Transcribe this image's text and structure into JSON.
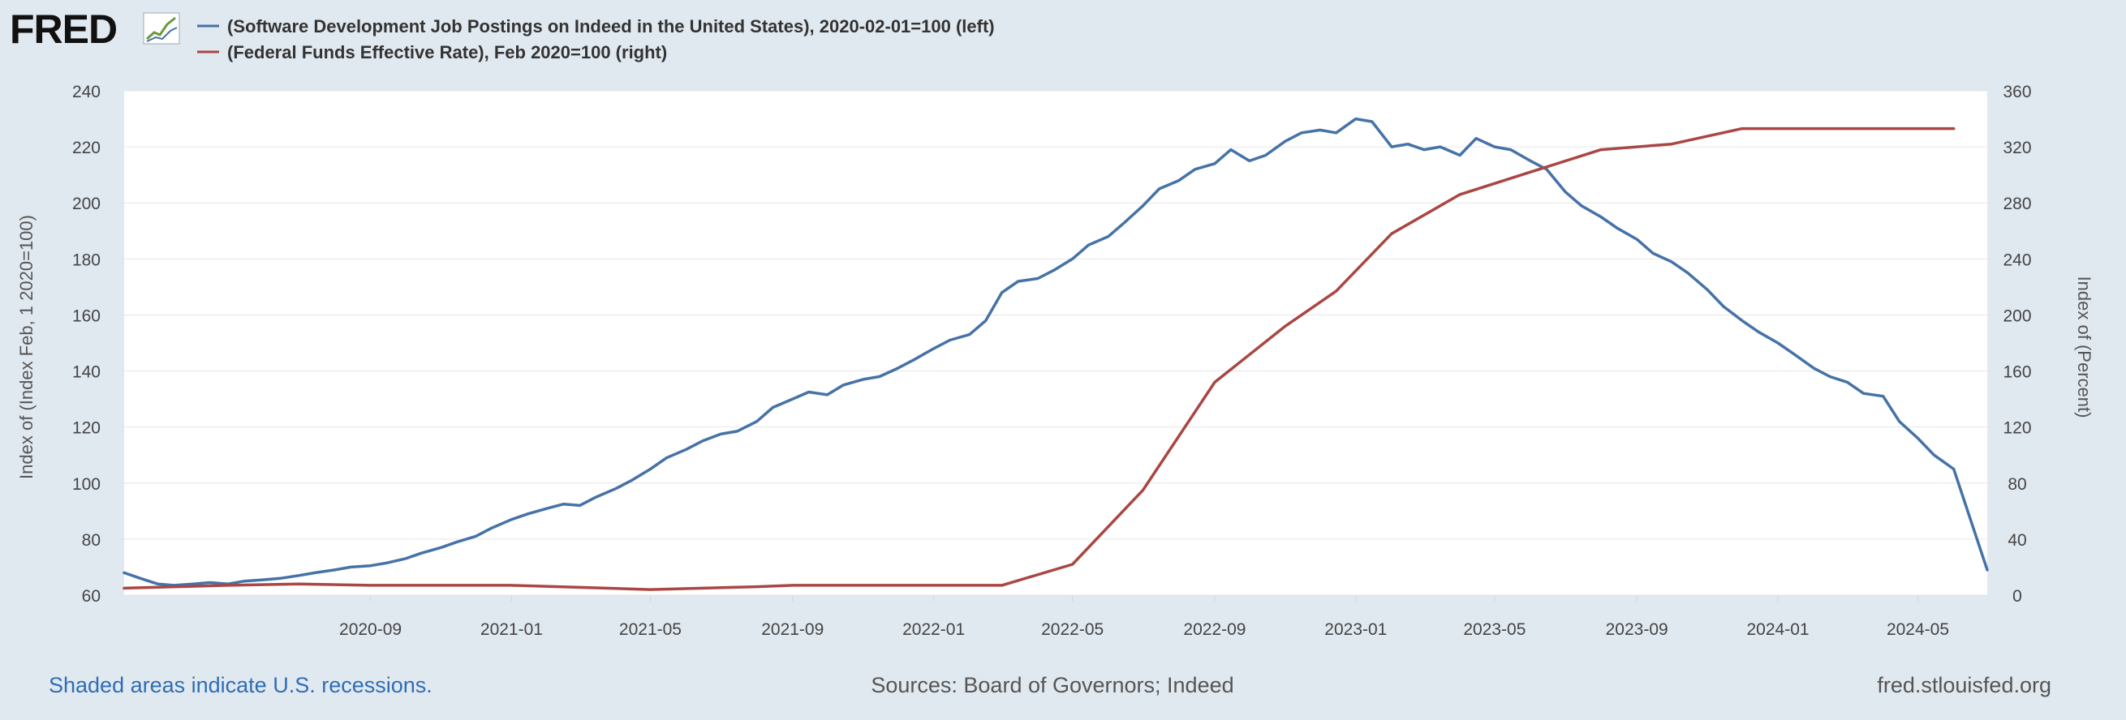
{
  "logo": {
    "text": "FRED"
  },
  "legend": [
    {
      "label": "(Software Development Job Postings on Indeed in the United States), 2020-02-01=100 (left)",
      "color": "#4572a7"
    },
    {
      "label": "(Federal Funds Effective Rate), Feb 2020=100 (right)",
      "color": "#aa4643"
    }
  ],
  "footer": {
    "recessions_note": "Shaded areas indicate U.S. recessions.",
    "sources": "Sources: Board of Governors; Indeed",
    "site": "fred.stlouisfed.org",
    "link_color": "#2f6db5"
  },
  "chart_data": {
    "type": "line",
    "title": "",
    "x_range": [
      "2020-02-01",
      "2024-06-30"
    ],
    "x_ticks": [
      "2020-09",
      "2021-01",
      "2021-05",
      "2021-09",
      "2022-01",
      "2022-05",
      "2022-09",
      "2023-01",
      "2023-05",
      "2023-09",
      "2024-01",
      "2024-05"
    ],
    "y_left": {
      "label": "Index of (Index Feb, 1 2020=100)",
      "range": [
        60,
        240
      ],
      "ticks": [
        60,
        80,
        100,
        120,
        140,
        160,
        180,
        200,
        220,
        240
      ]
    },
    "y_right": {
      "label": "Index of (Percent)",
      "range": [
        0,
        360
      ],
      "ticks": [
        0,
        40,
        80,
        120,
        160,
        200,
        240,
        280,
        320,
        360
      ]
    },
    "grid": true,
    "series": [
      {
        "name": "(Software Development Job Postings on Indeed in the United States), 2020-02-01=100 (left)",
        "axis": "left",
        "color": "#4572a7",
        "points": [
          [
            "2020-02-01",
            68
          ],
          [
            "2020-02-15",
            66
          ],
          [
            "2020-03-01",
            64
          ],
          [
            "2020-03-15",
            63.5
          ],
          [
            "2020-04-01",
            64
          ],
          [
            "2020-04-15",
            64.5
          ],
          [
            "2020-05-01",
            64
          ],
          [
            "2020-05-15",
            65
          ],
          [
            "2020-06-01",
            65.5
          ],
          [
            "2020-06-15",
            66
          ],
          [
            "2020-07-01",
            67
          ],
          [
            "2020-07-15",
            68
          ],
          [
            "2020-08-01",
            69
          ],
          [
            "2020-08-15",
            70
          ],
          [
            "2020-09-01",
            70.5
          ],
          [
            "2020-09-15",
            71.5
          ],
          [
            "2020-10-01",
            73
          ],
          [
            "2020-10-15",
            75
          ],
          [
            "2020-11-01",
            77
          ],
          [
            "2020-11-15",
            79
          ],
          [
            "2020-12-01",
            81
          ],
          [
            "2020-12-15",
            84
          ],
          [
            "2021-01-01",
            87
          ],
          [
            "2021-01-15",
            89
          ],
          [
            "2021-02-01",
            91
          ],
          [
            "2021-02-15",
            92.5
          ],
          [
            "2021-03-01",
            92
          ],
          [
            "2021-03-15",
            95
          ],
          [
            "2021-04-01",
            98
          ],
          [
            "2021-04-15",
            101
          ],
          [
            "2021-05-01",
            105
          ],
          [
            "2021-05-15",
            109
          ],
          [
            "2021-06-01",
            112
          ],
          [
            "2021-06-15",
            115
          ],
          [
            "2021-07-01",
            117.5
          ],
          [
            "2021-07-15",
            118.5
          ],
          [
            "2021-08-01",
            122
          ],
          [
            "2021-08-15",
            127
          ],
          [
            "2021-09-01",
            130
          ],
          [
            "2021-09-15",
            132.5
          ],
          [
            "2021-10-01",
            131.5
          ],
          [
            "2021-10-15",
            135
          ],
          [
            "2021-11-01",
            137
          ],
          [
            "2021-11-15",
            138
          ],
          [
            "2021-12-01",
            141
          ],
          [
            "2021-12-15",
            144
          ],
          [
            "2022-01-01",
            148
          ],
          [
            "2022-01-15",
            151
          ],
          [
            "2022-02-01",
            153
          ],
          [
            "2022-02-15",
            158
          ],
          [
            "2022-03-01",
            168
          ],
          [
            "2022-03-15",
            172
          ],
          [
            "2022-04-01",
            173
          ],
          [
            "2022-04-15",
            176
          ],
          [
            "2022-05-01",
            180
          ],
          [
            "2022-05-15",
            185
          ],
          [
            "2022-06-01",
            188
          ],
          [
            "2022-06-15",
            193
          ],
          [
            "2022-07-01",
            199
          ],
          [
            "2022-07-15",
            205
          ],
          [
            "2022-08-01",
            208
          ],
          [
            "2022-08-15",
            212
          ],
          [
            "2022-09-01",
            214
          ],
          [
            "2022-09-15",
            219
          ],
          [
            "2022-10-01",
            215
          ],
          [
            "2022-10-15",
            217
          ],
          [
            "2022-11-01",
            222
          ],
          [
            "2022-11-15",
            225
          ],
          [
            "2022-12-01",
            226
          ],
          [
            "2022-12-15",
            225
          ],
          [
            "2023-01-01",
            230
          ],
          [
            "2023-01-15",
            229
          ],
          [
            "2023-02-01",
            220
          ],
          [
            "2023-02-15",
            221
          ],
          [
            "2023-03-01",
            219
          ],
          [
            "2023-03-15",
            220
          ],
          [
            "2023-04-01",
            217
          ],
          [
            "2023-04-15",
            223
          ],
          [
            "2023-05-01",
            220
          ],
          [
            "2023-05-15",
            219
          ],
          [
            "2023-06-01",
            215
          ],
          [
            "2023-06-15",
            212
          ],
          [
            "2023-07-01",
            204
          ],
          [
            "2023-07-15",
            199
          ],
          [
            "2023-08-01",
            195
          ],
          [
            "2023-08-15",
            191
          ],
          [
            "2023-09-01",
            187
          ],
          [
            "2023-09-15",
            182
          ],
          [
            "2023-10-01",
            179
          ],
          [
            "2023-10-15",
            175
          ],
          [
            "2023-11-01",
            169
          ],
          [
            "2023-11-15",
            163
          ],
          [
            "2023-12-01",
            158
          ],
          [
            "2023-12-15",
            154
          ],
          [
            "2024-01-01",
            150
          ],
          [
            "2024-01-15",
            146
          ],
          [
            "2024-02-01",
            141
          ],
          [
            "2024-02-15",
            138
          ],
          [
            "2024-03-01",
            136
          ],
          [
            "2024-03-15",
            132
          ],
          [
            "2024-04-01",
            131
          ],
          [
            "2024-04-15",
            122
          ],
          [
            "2024-05-01",
            116
          ],
          [
            "2024-05-15",
            110
          ],
          [
            "2024-06-01",
            105
          ],
          [
            "2024-06-30",
            69
          ]
        ]
      },
      {
        "name": "(Federal Funds Effective Rate), Feb 2020=100 (right)",
        "axis": "right",
        "color": "#aa4643",
        "points": [
          [
            "2020-02-01",
            5
          ],
          [
            "2020-05-01",
            7
          ],
          [
            "2020-07-01",
            8
          ],
          [
            "2020-09-01",
            7
          ],
          [
            "2021-01-01",
            7
          ],
          [
            "2021-05-01",
            4
          ],
          [
            "2021-08-01",
            6
          ],
          [
            "2021-09-01",
            7
          ],
          [
            "2022-01-01",
            7
          ],
          [
            "2022-03-01",
            7
          ],
          [
            "2022-05-01",
            22
          ],
          [
            "2022-07-01",
            75
          ],
          [
            "2022-09-01",
            152
          ],
          [
            "2022-11-01",
            192
          ],
          [
            "2022-12-15",
            217
          ],
          [
            "2023-02-01",
            258
          ],
          [
            "2023-04-01",
            286
          ],
          [
            "2023-06-01",
            302
          ],
          [
            "2023-08-01",
            318
          ],
          [
            "2023-10-01",
            322
          ],
          [
            "2023-12-01",
            333
          ],
          [
            "2024-06-01",
            333
          ]
        ]
      }
    ]
  }
}
